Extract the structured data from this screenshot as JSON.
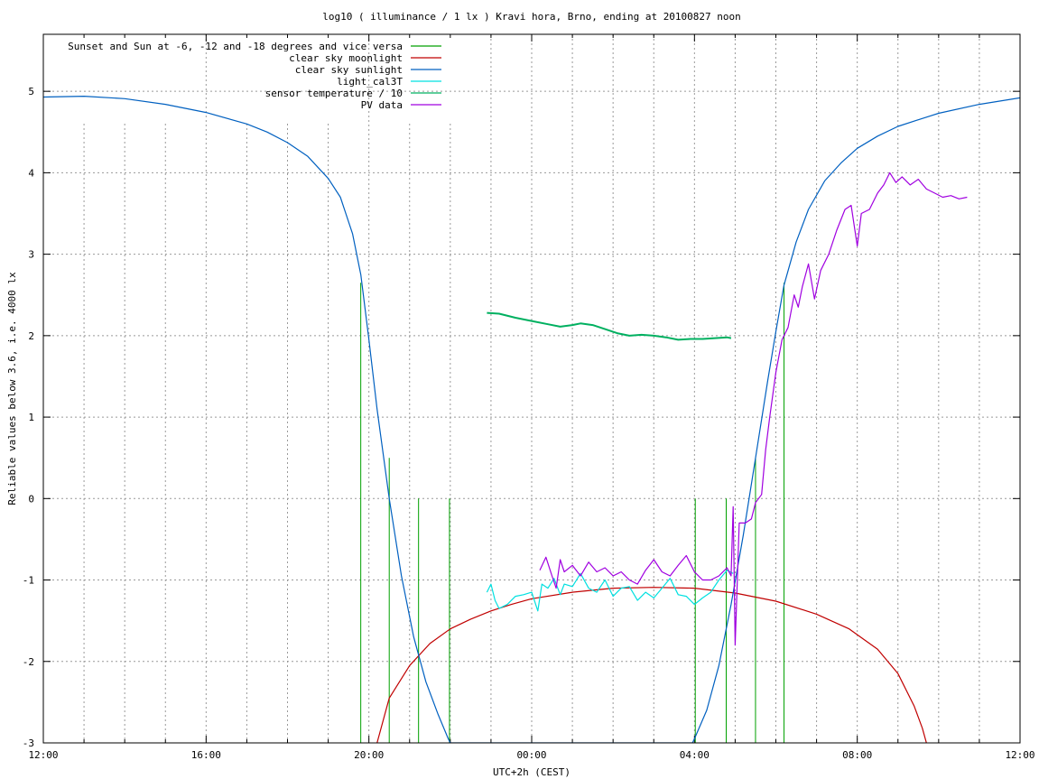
{
  "chart_data": {
    "type": "line",
    "title": "log10 ( illuminance / 1 lx ) Kravi hora, Brno, ending at 20100827 noon",
    "xlabel": "UTC+2h (CEST)",
    "ylabel": "Reliable values below 3.6, i.e. 4000 lx",
    "x_unit": "hours after 12:00 local time",
    "xlim": [
      0,
      24
    ],
    "ylim": [
      -3,
      5.7
    ],
    "x_tick_labels": [
      "12:00",
      "16:00",
      "20:00",
      "00:00",
      "04:00",
      "08:00",
      "12:00"
    ],
    "x_tick_values": [
      0,
      4,
      8,
      12,
      16,
      20,
      24
    ],
    "x_minor_tick_values": [
      1,
      2,
      3,
      5,
      6,
      7,
      9,
      10,
      11,
      13,
      14,
      15,
      17,
      18,
      19,
      21,
      22,
      23
    ],
    "y_tick_values": [
      -3,
      -2,
      -1,
      0,
      1,
      2,
      3,
      4,
      5
    ],
    "grid": true,
    "legend_position": "top-left",
    "series": [
      {
        "name": "Sunset and Sun at -6, -12 and -18 degrees and vice versa",
        "color": "#00a000",
        "style": "impulses",
        "points": [
          [
            7.8,
            2.65
          ],
          [
            8.5,
            0.5
          ],
          [
            9.22,
            0
          ],
          [
            9.98,
            0
          ],
          [
            16.02,
            0
          ],
          [
            16.78,
            0
          ],
          [
            17.5,
            0.5
          ],
          [
            18.2,
            2.65
          ]
        ]
      },
      {
        "name": "clear sky moonlight",
        "color": "#c00000",
        "style": "line",
        "points": [
          [
            8.2,
            -3.0
          ],
          [
            8.5,
            -2.45
          ],
          [
            9.0,
            -2.05
          ],
          [
            9.5,
            -1.78
          ],
          [
            10.0,
            -1.6
          ],
          [
            10.5,
            -1.48
          ],
          [
            11.0,
            -1.38
          ],
          [
            11.5,
            -1.3
          ],
          [
            12.0,
            -1.23
          ],
          [
            13.0,
            -1.15
          ],
          [
            14.0,
            -1.1
          ],
          [
            15.0,
            -1.09
          ],
          [
            16.0,
            -1.1
          ],
          [
            17.0,
            -1.16
          ],
          [
            18.0,
            -1.26
          ],
          [
            19.0,
            -1.42
          ],
          [
            19.8,
            -1.6
          ],
          [
            20.5,
            -1.85
          ],
          [
            21.0,
            -2.15
          ],
          [
            21.4,
            -2.55
          ],
          [
            21.6,
            -2.82
          ],
          [
            21.7,
            -3.0
          ]
        ]
      },
      {
        "name": "clear sky sunlight",
        "color": "#0060c0",
        "style": "line",
        "points": [
          [
            0.0,
            4.93
          ],
          [
            1.0,
            4.94
          ],
          [
            2.0,
            4.91
          ],
          [
            3.0,
            4.84
          ],
          [
            4.0,
            4.74
          ],
          [
            5.0,
            4.6
          ],
          [
            5.5,
            4.5
          ],
          [
            6.0,
            4.37
          ],
          [
            6.5,
            4.2
          ],
          [
            7.0,
            3.93
          ],
          [
            7.3,
            3.7
          ],
          [
            7.6,
            3.25
          ],
          [
            7.8,
            2.75
          ],
          [
            8.0,
            1.95
          ],
          [
            8.2,
            1.1
          ],
          [
            8.5,
            0.0
          ],
          [
            8.8,
            -0.95
          ],
          [
            9.1,
            -1.7
          ],
          [
            9.4,
            -2.25
          ],
          [
            9.7,
            -2.65
          ],
          [
            9.95,
            -2.95
          ],
          [
            10.0,
            -3.0
          ],
          [
            15.95,
            -3.0
          ],
          [
            16.0,
            -2.95
          ],
          [
            16.3,
            -2.6
          ],
          [
            16.6,
            -2.05
          ],
          [
            16.9,
            -1.3
          ],
          [
            17.2,
            -0.45
          ],
          [
            17.5,
            0.5
          ],
          [
            17.8,
            1.45
          ],
          [
            18.0,
            2.05
          ],
          [
            18.2,
            2.62
          ],
          [
            18.5,
            3.15
          ],
          [
            18.8,
            3.55
          ],
          [
            19.2,
            3.9
          ],
          [
            19.6,
            4.12
          ],
          [
            20.0,
            4.3
          ],
          [
            20.5,
            4.45
          ],
          [
            21.0,
            4.57
          ],
          [
            21.5,
            4.65
          ],
          [
            22.0,
            4.73
          ],
          [
            23.0,
            4.84
          ],
          [
            24.0,
            4.92
          ]
        ]
      },
      {
        "name": "light_cal3T",
        "color": "#00e0e0",
        "style": "line",
        "points": [
          [
            10.9,
            -1.15
          ],
          [
            11.0,
            -1.05
          ],
          [
            11.1,
            -1.25
          ],
          [
            11.2,
            -1.35
          ],
          [
            11.4,
            -1.3
          ],
          [
            11.6,
            -1.2
          ],
          [
            11.8,
            -1.18
          ],
          [
            12.0,
            -1.15
          ],
          [
            12.15,
            -1.38
          ],
          [
            12.25,
            -1.05
          ],
          [
            12.4,
            -1.1
          ],
          [
            12.55,
            -0.98
          ],
          [
            12.7,
            -1.18
          ],
          [
            12.8,
            -1.05
          ],
          [
            13.0,
            -1.08
          ],
          [
            13.2,
            -0.92
          ],
          [
            13.4,
            -1.1
          ],
          [
            13.6,
            -1.15
          ],
          [
            13.8,
            -1.0
          ],
          [
            14.0,
            -1.2
          ],
          [
            14.2,
            -1.1
          ],
          [
            14.4,
            -1.08
          ],
          [
            14.6,
            -1.25
          ],
          [
            14.8,
            -1.15
          ],
          [
            15.0,
            -1.22
          ],
          [
            15.2,
            -1.1
          ],
          [
            15.4,
            -0.98
          ],
          [
            15.6,
            -1.18
          ],
          [
            15.8,
            -1.2
          ],
          [
            16.0,
            -1.3
          ],
          [
            16.2,
            -1.22
          ],
          [
            16.4,
            -1.15
          ],
          [
            16.6,
            -1.0
          ],
          [
            16.8,
            -0.88
          ],
          [
            16.95,
            -0.92
          ]
        ]
      },
      {
        "name": "sensor temperature / 10",
        "color": "#00b060",
        "style": "line",
        "points": [
          [
            10.9,
            2.28
          ],
          [
            11.2,
            2.27
          ],
          [
            11.6,
            2.22
          ],
          [
            12.0,
            2.18
          ],
          [
            12.4,
            2.14
          ],
          [
            12.7,
            2.11
          ],
          [
            13.0,
            2.13
          ],
          [
            13.2,
            2.15
          ],
          [
            13.5,
            2.13
          ],
          [
            13.8,
            2.08
          ],
          [
            14.1,
            2.03
          ],
          [
            14.4,
            2.0
          ],
          [
            14.7,
            2.01
          ],
          [
            15.0,
            2.0
          ],
          [
            15.3,
            1.98
          ],
          [
            15.6,
            1.95
          ],
          [
            15.9,
            1.96
          ],
          [
            16.2,
            1.96
          ],
          [
            16.5,
            1.97
          ],
          [
            16.8,
            1.98
          ],
          [
            16.9,
            1.97
          ]
        ]
      },
      {
        "name": "PV data",
        "color": "#a000e0",
        "style": "line",
        "points": [
          [
            12.2,
            -0.88
          ],
          [
            12.35,
            -0.72
          ],
          [
            12.5,
            -0.95
          ],
          [
            12.6,
            -1.1
          ],
          [
            12.7,
            -0.75
          ],
          [
            12.8,
            -0.9
          ],
          [
            13.0,
            -0.82
          ],
          [
            13.2,
            -0.95
          ],
          [
            13.4,
            -0.78
          ],
          [
            13.6,
            -0.9
          ],
          [
            13.8,
            -0.85
          ],
          [
            14.0,
            -0.95
          ],
          [
            14.2,
            -0.9
          ],
          [
            14.4,
            -1.0
          ],
          [
            14.6,
            -1.05
          ],
          [
            14.8,
            -0.88
          ],
          [
            15.0,
            -0.75
          ],
          [
            15.2,
            -0.9
          ],
          [
            15.4,
            -0.95
          ],
          [
            15.6,
            -0.82
          ],
          [
            15.8,
            -0.7
          ],
          [
            16.0,
            -0.9
          ],
          [
            16.2,
            -1.0
          ],
          [
            16.4,
            -1.0
          ],
          [
            16.6,
            -0.95
          ],
          [
            16.8,
            -0.85
          ],
          [
            16.9,
            -0.95
          ],
          [
            16.95,
            -0.1
          ],
          [
            17.0,
            -1.8
          ],
          [
            17.1,
            -0.3
          ],
          [
            17.25,
            -0.3
          ],
          [
            17.4,
            -0.25
          ],
          [
            17.5,
            -0.05
          ],
          [
            17.65,
            0.05
          ],
          [
            17.75,
            0.6
          ],
          [
            17.85,
            1.0
          ],
          [
            18.0,
            1.55
          ],
          [
            18.15,
            1.95
          ],
          [
            18.3,
            2.1
          ],
          [
            18.45,
            2.5
          ],
          [
            18.55,
            2.35
          ],
          [
            18.65,
            2.6
          ],
          [
            18.8,
            2.88
          ],
          [
            18.95,
            2.45
          ],
          [
            19.1,
            2.8
          ],
          [
            19.3,
            3.0
          ],
          [
            19.5,
            3.3
          ],
          [
            19.7,
            3.55
          ],
          [
            19.85,
            3.6
          ],
          [
            20.0,
            3.1
          ],
          [
            20.1,
            3.5
          ],
          [
            20.3,
            3.55
          ],
          [
            20.5,
            3.75
          ],
          [
            20.65,
            3.85
          ],
          [
            20.8,
            4.0
          ],
          [
            20.95,
            3.88
          ],
          [
            21.1,
            3.95
          ],
          [
            21.3,
            3.85
          ],
          [
            21.5,
            3.92
          ],
          [
            21.7,
            3.8
          ],
          [
            21.9,
            3.75
          ],
          [
            22.1,
            3.7
          ],
          [
            22.3,
            3.72
          ],
          [
            22.5,
            3.68
          ],
          [
            22.7,
            3.7
          ]
        ]
      }
    ]
  }
}
